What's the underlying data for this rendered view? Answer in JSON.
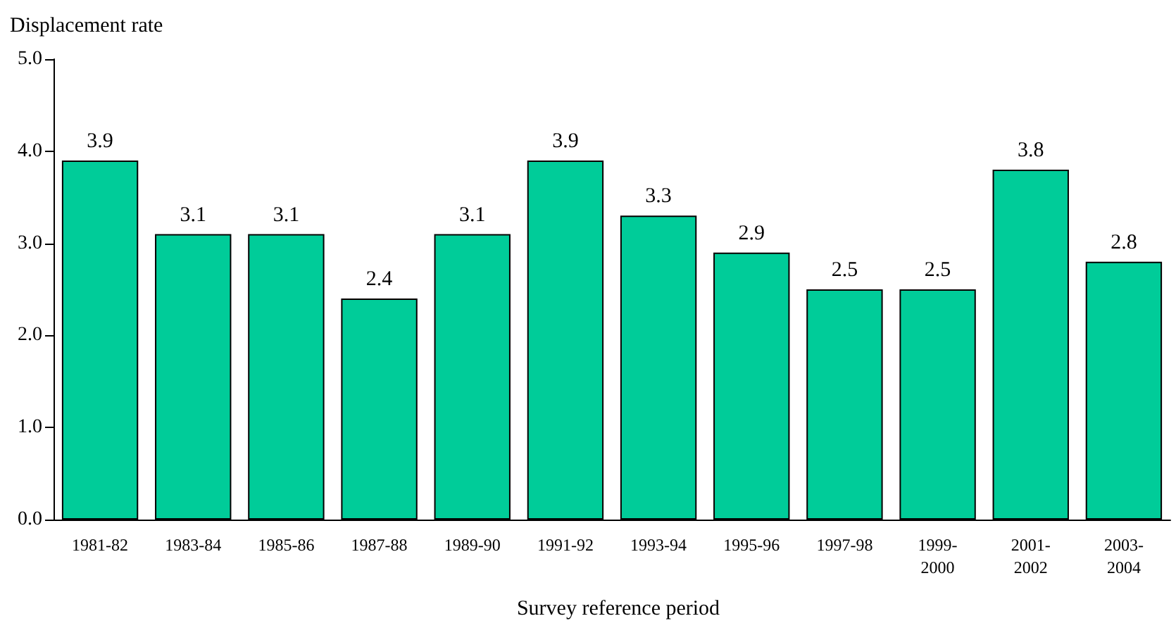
{
  "chart_data": {
    "type": "bar",
    "ylabel": "Displacement rate",
    "xlabel": "Survey reference period",
    "categories": [
      "1981-82",
      "1983-84",
      "1985-86",
      "1987-88",
      "1989-90",
      "1991-92",
      "1993-94",
      "1995-96",
      "1997-98",
      "1999-\n2000",
      "2001-\n2002",
      "2003-\n2004"
    ],
    "values": [
      3.9,
      3.1,
      3.1,
      2.4,
      3.1,
      3.9,
      3.3,
      2.9,
      2.5,
      2.5,
      3.8,
      2.8
    ],
    "color": "#00cc99",
    "ylim": [
      0,
      5
    ],
    "yticks": [
      {
        "value": 0,
        "label": "0.0"
      },
      {
        "value": 1,
        "label": "1.0"
      },
      {
        "value": 2,
        "label": "2.0"
      },
      {
        "value": 3,
        "label": "3.0"
      },
      {
        "value": 4,
        "label": "4.0"
      },
      {
        "value": 5,
        "label": "5.0"
      }
    ],
    "data_labels": true,
    "grid": false
  }
}
